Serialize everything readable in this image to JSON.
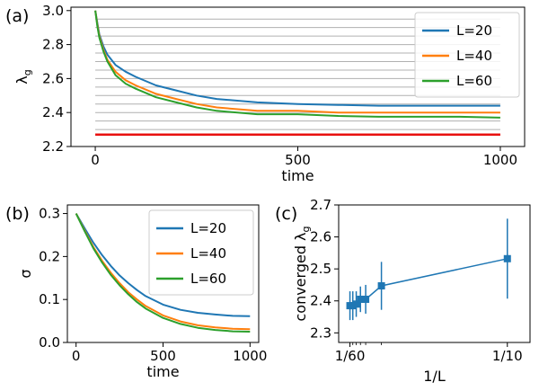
{
  "colors": {
    "blue": "#1f77b4",
    "orange": "#ff7f0e",
    "green": "#2ca02c",
    "red": "#e8100f",
    "grid": "#b0b0b0"
  },
  "chart_data": [
    {
      "panel_label": "(a)",
      "type": "line",
      "xlabel": "time",
      "ylabel": "λ",
      "ylabel_sub": "g",
      "xlim": [
        -60,
        1060
      ],
      "ylim": [
        2.2,
        3.02
      ],
      "xticks": [
        0,
        500,
        1000
      ],
      "yticks": [
        2.2,
        2.4,
        2.6,
        2.8,
        3.0
      ],
      "ytick_labels": [
        "2.2",
        "2.4",
        "2.6",
        "2.8",
        "3.0"
      ],
      "gray_hlines": [
        2.3,
        2.35,
        2.4,
        2.45,
        2.5,
        2.55,
        2.6,
        2.65,
        2.7,
        2.75,
        2.8,
        2.85,
        2.9,
        2.95
      ],
      "red_hline": 2.27,
      "legend_position": "top-right",
      "series": [
        {
          "name": "L=20",
          "color": "blue",
          "x": [
            0,
            5,
            10,
            20,
            30,
            50,
            75,
            100,
            150,
            200,
            250,
            300,
            400,
            500,
            600,
            700,
            800,
            900,
            1000
          ],
          "y": [
            3.0,
            2.93,
            2.86,
            2.79,
            2.74,
            2.68,
            2.64,
            2.61,
            2.56,
            2.53,
            2.5,
            2.48,
            2.46,
            2.45,
            2.445,
            2.44,
            2.44,
            2.44,
            2.44
          ]
        },
        {
          "name": "L=40",
          "color": "orange",
          "x": [
            0,
            5,
            10,
            20,
            30,
            50,
            75,
            100,
            150,
            200,
            250,
            300,
            400,
            500,
            600,
            700,
            800,
            900,
            1000
          ],
          "y": [
            3.0,
            2.92,
            2.85,
            2.77,
            2.71,
            2.64,
            2.59,
            2.56,
            2.51,
            2.48,
            2.45,
            2.43,
            2.41,
            2.41,
            2.4,
            2.4,
            2.4,
            2.4,
            2.4
          ]
        },
        {
          "name": "L=60",
          "color": "green",
          "x": [
            0,
            5,
            10,
            20,
            30,
            50,
            75,
            100,
            150,
            200,
            250,
            300,
            400,
            500,
            600,
            700,
            800,
            900,
            1000
          ],
          "y": [
            3.0,
            2.91,
            2.84,
            2.76,
            2.7,
            2.62,
            2.57,
            2.54,
            2.49,
            2.46,
            2.43,
            2.41,
            2.39,
            2.39,
            2.38,
            2.375,
            2.375,
            2.375,
            2.37
          ]
        }
      ]
    },
    {
      "panel_label": "(b)",
      "type": "line",
      "xlabel": "time",
      "ylabel": "σ",
      "xlim": [
        -50,
        1050
      ],
      "ylim": [
        0.0,
        0.32
      ],
      "xticks": [
        0,
        500,
        1000
      ],
      "yticks": [
        0.0,
        0.1,
        0.2,
        0.3
      ],
      "ytick_labels": [
        "0.0",
        "0.1",
        "0.2",
        "0.3"
      ],
      "legend_position": "top-right",
      "series": [
        {
          "name": "L=20",
          "color": "blue",
          "x": [
            0,
            50,
            100,
            150,
            200,
            250,
            300,
            350,
            400,
            500,
            600,
            700,
            800,
            900,
            1000
          ],
          "y": [
            0.3,
            0.265,
            0.232,
            0.203,
            0.178,
            0.156,
            0.138,
            0.122,
            0.108,
            0.088,
            0.076,
            0.069,
            0.065,
            0.062,
            0.061
          ]
        },
        {
          "name": "L=40",
          "color": "orange",
          "x": [
            0,
            50,
            100,
            150,
            200,
            250,
            300,
            350,
            400,
            500,
            600,
            700,
            800,
            900,
            1000
          ],
          "y": [
            0.3,
            0.26,
            0.222,
            0.19,
            0.162,
            0.138,
            0.117,
            0.1,
            0.085,
            0.063,
            0.049,
            0.04,
            0.035,
            0.032,
            0.031
          ]
        },
        {
          "name": "L=60",
          "color": "green",
          "x": [
            0,
            50,
            100,
            150,
            200,
            250,
            300,
            350,
            400,
            500,
            600,
            700,
            800,
            900,
            1000
          ],
          "y": [
            0.3,
            0.258,
            0.219,
            0.186,
            0.157,
            0.133,
            0.112,
            0.094,
            0.079,
            0.057,
            0.043,
            0.034,
            0.029,
            0.026,
            0.025
          ]
        }
      ]
    },
    {
      "panel_label": "(c)",
      "type": "scatter",
      "xlabel": "1/L",
      "ylabel": "converged λ",
      "ylabel_sub": "g",
      "xlim": [
        0.0107,
        0.112
      ],
      "ylim": [
        2.27,
        2.7
      ],
      "xticks": [
        0.016667,
        0.1
      ],
      "xtick_labels": [
        "1/60",
        "1/10"
      ],
      "yticks": [
        2.3,
        2.4,
        2.5,
        2.6,
        2.7
      ],
      "ytick_labels": [
        "2.3",
        "2.4",
        "2.5",
        "2.6",
        "2.7"
      ],
      "series": [
        {
          "name": "",
          "color": "blue",
          "x": [
            0.016667,
            0.018182,
            0.02,
            0.022222,
            0.025,
            0.033333,
            0.1
          ],
          "y": [
            2.385,
            2.385,
            2.39,
            2.405,
            2.405,
            2.447,
            2.532
          ],
          "yerr": [
            0.045,
            0.045,
            0.04,
            0.04,
            0.045,
            0.075,
            0.125
          ]
        }
      ]
    }
  ]
}
